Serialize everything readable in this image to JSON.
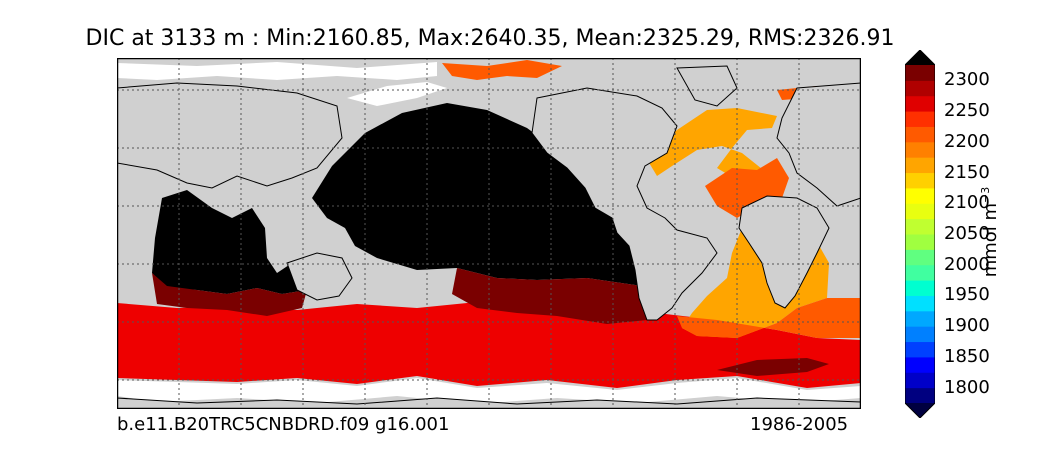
{
  "title": "DIC at 3133 m : Min:2160.85, Max:2640.35, Mean:2325.29, RMS:2326.91",
  "footer": {
    "case": "b.e11.B20TRC5CNBDRD.f09 g16.001",
    "years": "1986-2005"
  },
  "colorbar": {
    "unit": "mmol m",
    "unit_exponent": "−3",
    "ticks": [
      "2300",
      "2250",
      "2200",
      "2150",
      "2100",
      "2050",
      "2000",
      "1950",
      "1900",
      "1850",
      "1800"
    ],
    "levels": [
      1775,
      1800,
      1825,
      1850,
      1875,
      1900,
      1925,
      1950,
      1975,
      2000,
      2025,
      2050,
      2075,
      2100,
      2125,
      2150,
      2175,
      2200,
      2225,
      2250,
      2275,
      2300,
      2325
    ],
    "colors": {
      "under": "#000040",
      "over": "#000000",
      "bands": [
        "#000080",
        "#0000c8",
        "#0000ff",
        "#0040ff",
        "#0080ff",
        "#00a8ff",
        "#00e0ff",
        "#00ffd0",
        "#40ffa0",
        "#60ff80",
        "#a0ff40",
        "#c0ff30",
        "#e8ff10",
        "#ffff00",
        "#ffd000",
        "#ffa500",
        "#ff8000",
        "#ff5a00",
        "#ff3000",
        "#e00000",
        "#b00000",
        "#7a0000"
      ]
    }
  },
  "map": {
    "land_color": "#d0d0d0",
    "missing_color": "#ffffff",
    "grid": true,
    "colors": {
      "black": "#000000",
      "dark_red": "#7a0000",
      "red": "#ee0000",
      "orange_red": "#ff5a00",
      "orange": "#ffa500"
    }
  }
}
